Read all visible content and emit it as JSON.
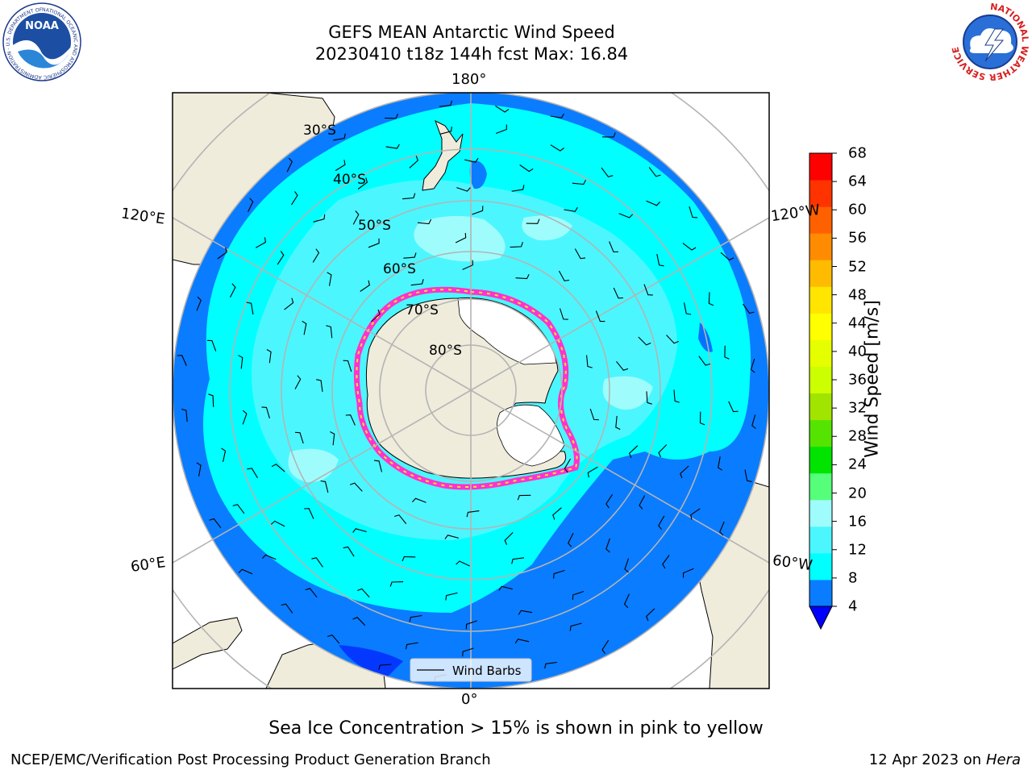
{
  "title": {
    "line1": "GEFS MEAN Antarctic Wind Speed",
    "line2": "20230410 t18z 144h fcst   Max: 16.84"
  },
  "map": {
    "projection": "south-polar-stereographic",
    "longitude_labels": {
      "top": "180°",
      "upper_left": "120°E",
      "upper_right": "120°W",
      "lower_left": "60°E",
      "lower_right": "60°W",
      "bottom": "0°"
    },
    "latitude_labels": [
      "30°S",
      "40°S",
      "50°S",
      "60°S",
      "70°S",
      "80°S"
    ],
    "legend": {
      "label": "Wind Barbs"
    },
    "colors": {
      "land": "#efecdc",
      "ice_shelf": "#ffffff",
      "ocean_4_8": "#0a7cff",
      "ocean_8_12": "#00ffff",
      "ocean_12_16": "#4cf6ff",
      "ocean_16_20": "#9ffcfc",
      "sea_ice_edge_pink": "#ff33cc",
      "sea_ice_edge_yellow": "#ffe033",
      "grid": "#b4b4b4"
    }
  },
  "colorbar": {
    "label": "Wind Speed [m/s]",
    "ticks": [
      "68",
      "64",
      "60",
      "56",
      "52",
      "48",
      "44",
      "40",
      "36",
      "32",
      "28",
      "24",
      "20",
      "16",
      "12",
      "8",
      "4"
    ],
    "colors_bottom_to_top": [
      "#0a7cff",
      "#00ffff",
      "#4cf6ff",
      "#9ffcfc",
      "#55ff7a",
      "#00e400",
      "#55e400",
      "#a0e400",
      "#ccff00",
      "#e6ff00",
      "#ffff00",
      "#ffe500",
      "#ffbb00",
      "#ff8c00",
      "#ff6000",
      "#ff3300",
      "#ff0000"
    ],
    "extend_color": "#0000ff"
  },
  "caption": "Sea Ice Concentration > 15% is shown in pink to yellow",
  "footer": {
    "left": "NCEP/EMC/Verification Post Processing Product Generation Branch",
    "right_date": "12 Apr 2023 on ",
    "right_host": "Hera"
  },
  "logos": {
    "noaa": {
      "text": "NOAA",
      "ring_text": "NATIONAL OCEANIC AND ATMOSPHERIC ADMINISTRATION · U.S. DEPARTMENT OF COMMERCE"
    },
    "nws": {
      "ring_text": "NATIONAL WEATHER SERVICE"
    }
  }
}
